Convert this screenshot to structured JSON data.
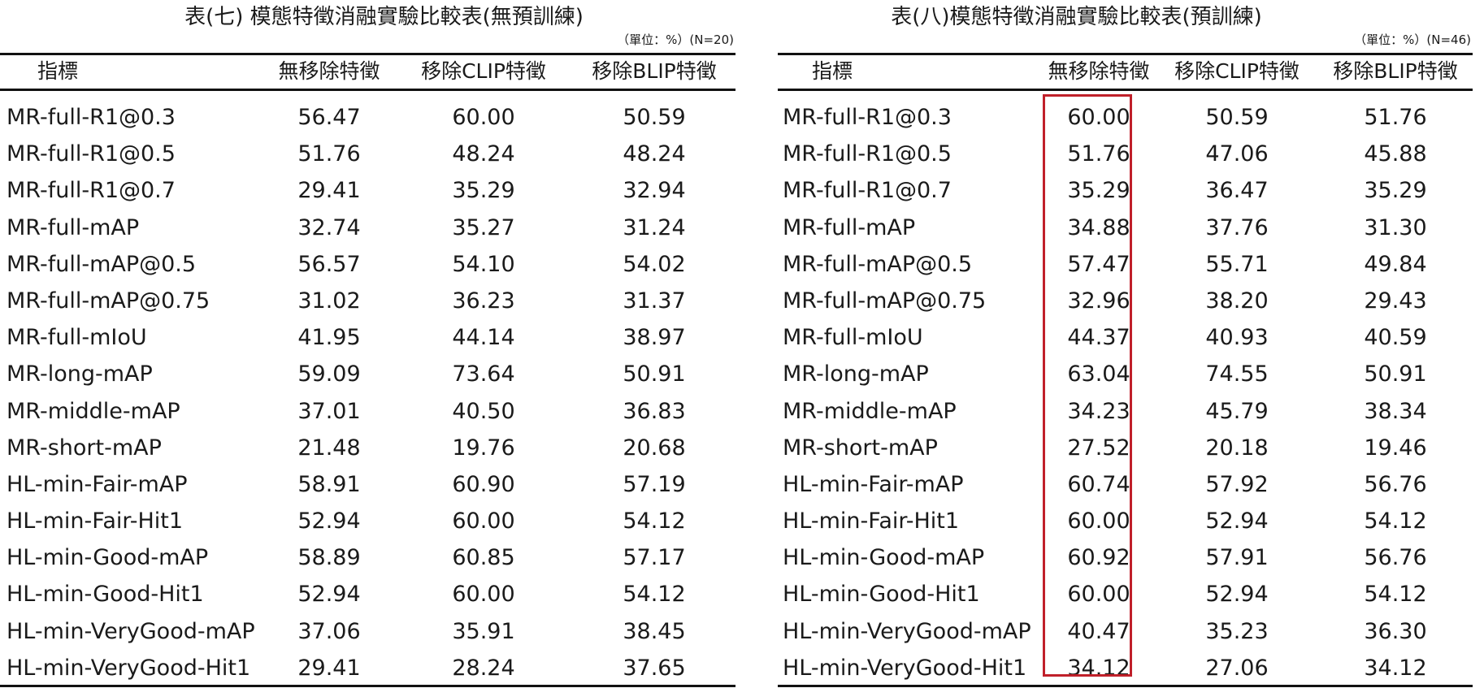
{
  "left_table": {
    "title": "表(七) 模態特徵消融實驗比較表(無預訓練)",
    "note": "（單位：%）(N=20)",
    "headers": [
      "指標",
      "無移除特徵",
      "移除CLIP特徵",
      "移除BLIP特徵"
    ],
    "rows": [
      [
        "MR-full-R1@0.3",
        "56.47",
        "60.00",
        "50.59"
      ],
      [
        "MR-full-R1@0.5",
        "51.76",
        "48.24",
        "48.24"
      ],
      [
        "MR-full-R1@0.7",
        "29.41",
        "35.29",
        "32.94"
      ],
      [
        "MR-full-mAP",
        "32.74",
        "35.27",
        "31.24"
      ],
      [
        "MR-full-mAP@0.5",
        "56.57",
        "54.10",
        "54.02"
      ],
      [
        "MR-full-mAP@0.75",
        "31.02",
        "36.23",
        "31.37"
      ],
      [
        "MR-full-mIoU",
        "41.95",
        "44.14",
        "38.97"
      ],
      [
        "MR-long-mAP",
        "59.09",
        "73.64",
        "50.91"
      ],
      [
        "MR-middle-mAP",
        "37.01",
        "40.50",
        "36.83"
      ],
      [
        "MR-short-mAP",
        "21.48",
        "19.76",
        "20.68"
      ],
      [
        "HL-min-Fair-mAP",
        "58.91",
        "60.90",
        "57.19"
      ],
      [
        "HL-min-Fair-Hit1",
        "52.94",
        "60.00",
        "54.12"
      ],
      [
        "HL-min-Good-mAP",
        "58.89",
        "60.85",
        "57.17"
      ],
      [
        "HL-min-Good-Hit1",
        "52.94",
        "60.00",
        "54.12"
      ],
      [
        "HL-min-VeryGood-mAP",
        "37.06",
        "35.91",
        "38.45"
      ],
      [
        "HL-min-VeryGood-Hit1",
        "29.41",
        "28.24",
        "37.65"
      ]
    ]
  },
  "right_table": {
    "title": "表(八)模態特徵消融實驗比較表(預訓練)",
    "note": "（單位：%）(N=46)",
    "headers": [
      "指標",
      "無移除特徵",
      "移除CLIP特徵",
      "移除BLIP特徵"
    ],
    "rows": [
      [
        "MR-full-R1@0.3",
        "60.00",
        "50.59",
        "51.76"
      ],
      [
        "MR-full-R1@0.5",
        "51.76",
        "47.06",
        "45.88"
      ],
      [
        "MR-full-R1@0.7",
        "35.29",
        "36.47",
        "35.29"
      ],
      [
        "MR-full-mAP",
        "34.88",
        "37.76",
        "31.30"
      ],
      [
        "MR-full-mAP@0.5",
        "57.47",
        "55.71",
        "49.84"
      ],
      [
        "MR-full-mAP@0.75",
        "32.96",
        "38.20",
        "29.43"
      ],
      [
        "MR-full-mIoU",
        "44.37",
        "40.93",
        "40.59"
      ],
      [
        "MR-long-mAP",
        "63.04",
        "74.55",
        "50.91"
      ],
      [
        "MR-middle-mAP",
        "34.23",
        "45.79",
        "38.34"
      ],
      [
        "MR-short-mAP",
        "27.52",
        "20.18",
        "19.46"
      ],
      [
        "HL-min-Fair-mAP",
        "60.74",
        "57.92",
        "56.76"
      ],
      [
        "HL-min-Fair-Hit1",
        "60.00",
        "52.94",
        "54.12"
      ],
      [
        "HL-min-Good-mAP",
        "60.92",
        "57.91",
        "56.76"
      ],
      [
        "HL-min-Good-Hit1",
        "60.00",
        "52.94",
        "54.12"
      ],
      [
        "HL-min-VeryGood-mAP",
        "40.47",
        "35.23",
        "36.30"
      ],
      [
        "HL-min-VeryGood-Hit1",
        "34.12",
        "27.06",
        "34.12"
      ]
    ],
    "highlight_color": "#c0202a"
  }
}
